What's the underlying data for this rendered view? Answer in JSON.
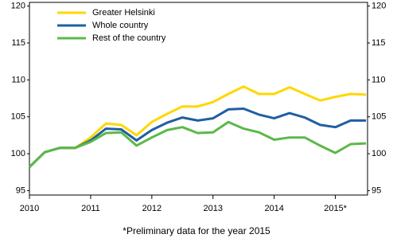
{
  "chart_data": {
    "type": "line",
    "categories": [
      "2010",
      null,
      null,
      null,
      "2011",
      null,
      null,
      null,
      "2012",
      null,
      null,
      null,
      "2013",
      null,
      null,
      null,
      "2014",
      null,
      null,
      null,
      "2015*",
      null,
      null
    ],
    "series": [
      {
        "name": "Greater Helsinki",
        "color": "#ffd700",
        "values": [
          98.2,
          100.2,
          100.8,
          100.8,
          102.2,
          104.1,
          103.9,
          102.5,
          104.3,
          105.4,
          106.4,
          106.4,
          107.0,
          108.1,
          109.1,
          108.1,
          108.1,
          109.0,
          108.1,
          107.2,
          107.7,
          108.1,
          108.0
        ]
      },
      {
        "name": "Whole country",
        "color": "#1f5fa0",
        "values": [
          98.2,
          100.2,
          100.8,
          100.8,
          101.8,
          103.4,
          103.3,
          101.8,
          103.2,
          104.2,
          104.9,
          104.5,
          104.8,
          106.0,
          106.1,
          105.3,
          104.8,
          105.5,
          104.9,
          103.9,
          103.6,
          104.5,
          104.5
        ]
      },
      {
        "name": "Rest of the country",
        "color": "#5cb84a",
        "values": [
          98.2,
          100.2,
          100.8,
          100.8,
          101.6,
          102.8,
          102.9,
          101.1,
          102.2,
          103.2,
          103.6,
          102.8,
          102.9,
          104.3,
          103.4,
          102.9,
          101.9,
          102.2,
          102.2,
          101.1,
          100.1,
          101.3,
          101.4
        ]
      }
    ],
    "ylim": [
      94.4,
      120.5
    ],
    "yticks": [
      95,
      100,
      105,
      110,
      115,
      120
    ],
    "note": "*Preliminary data for the year 2015"
  }
}
